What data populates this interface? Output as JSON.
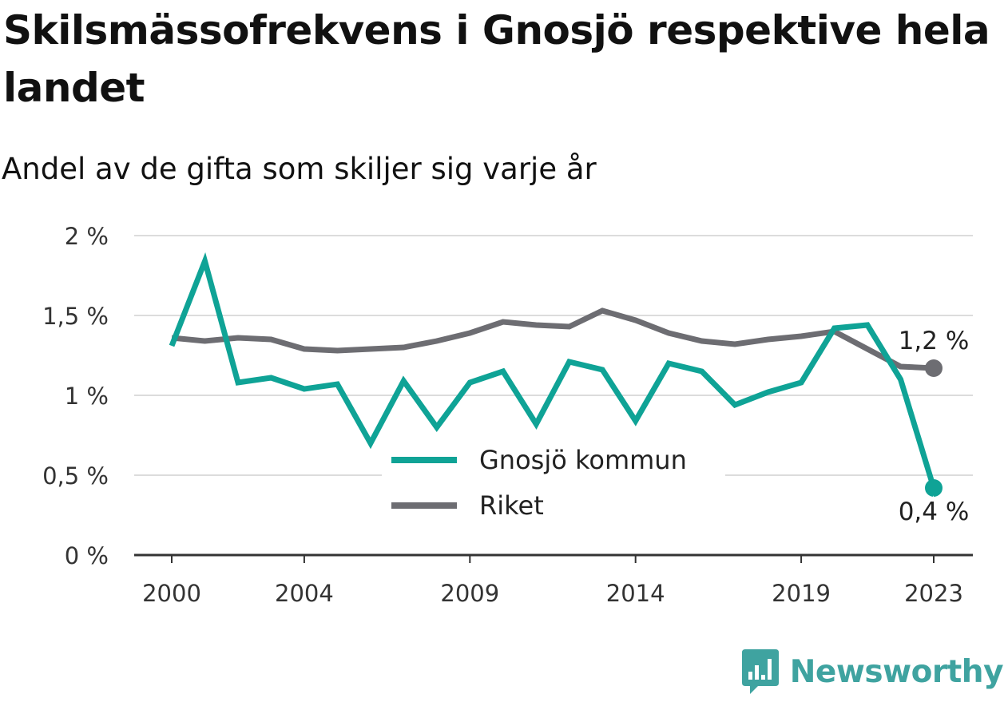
{
  "header": {
    "title": "Skilsmässofrekvens i Gnosjö respektive hela landet",
    "subtitle": "Andel av de gifta som skiljer sig varje år"
  },
  "brand": {
    "name": "Newsworthy",
    "icon": "newsworthy-logo-icon",
    "color": "#3fa3a0"
  },
  "chart_data": {
    "type": "line",
    "title": "Skilsmässofrekvens i Gnosjö respektive hela landet",
    "subtitle": "Andel av de gifta som skiljer sig varje år",
    "xlabel": "",
    "ylabel": "",
    "x": [
      2000,
      2001,
      2002,
      2003,
      2004,
      2005,
      2006,
      2007,
      2008,
      2009,
      2010,
      2011,
      2012,
      2013,
      2014,
      2015,
      2016,
      2017,
      2018,
      2019,
      2020,
      2021,
      2022,
      2023
    ],
    "x_ticks": [
      "2000",
      "2004",
      "2009",
      "2014",
      "2019",
      "2023"
    ],
    "x_tick_values": [
      2000,
      2004,
      2009,
      2014,
      2019,
      2023
    ],
    "xlim": [
      2000,
      2023
    ],
    "ylim": [
      0,
      2
    ],
    "y_ticks": [
      0,
      0.5,
      1,
      1.5,
      2
    ],
    "y_tick_labels": [
      "0 %",
      "0,5 %",
      "1 %",
      "1,5 %",
      "2 %"
    ],
    "grid": true,
    "legend_position": "center-bottom",
    "series": [
      {
        "name": "Gnosjö kommun",
        "color": "#0fa396",
        "values": [
          1.31,
          1.84,
          1.08,
          1.11,
          1.04,
          1.07,
          0.7,
          1.09,
          0.8,
          1.08,
          1.15,
          0.82,
          1.21,
          1.16,
          0.84,
          1.2,
          1.15,
          0.94,
          1.02,
          1.08,
          1.42,
          1.44,
          1.1,
          0.42
        ],
        "end_label": "0,4 %"
      },
      {
        "name": "Riket",
        "color": "#6d6d72",
        "values": [
          1.36,
          1.34,
          1.36,
          1.35,
          1.29,
          1.28,
          1.29,
          1.3,
          1.34,
          1.39,
          1.46,
          1.44,
          1.43,
          1.53,
          1.47,
          1.39,
          1.34,
          1.32,
          1.35,
          1.37,
          1.4,
          1.29,
          1.18,
          1.17
        ],
        "end_label": "1,2 %"
      }
    ]
  }
}
